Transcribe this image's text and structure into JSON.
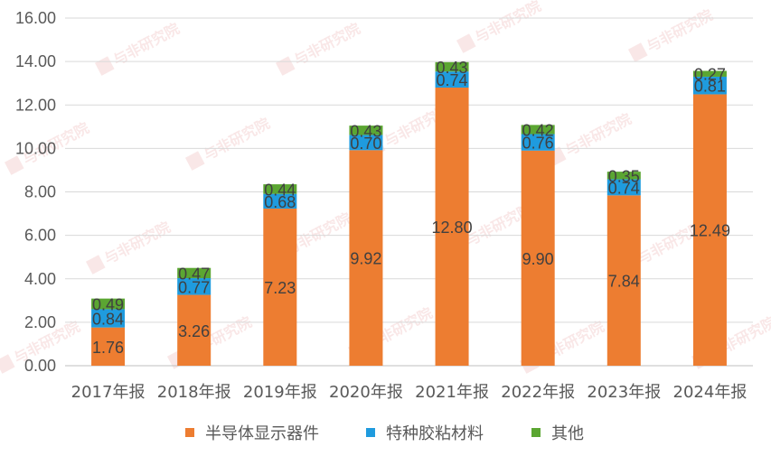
{
  "chart_data": {
    "type": "bar",
    "stacked": true,
    "categories": [
      "2017年报",
      "2018年报",
      "2019年报",
      "2020年报",
      "2021年报",
      "2022年报",
      "2023年报",
      "2024年报"
    ],
    "series": [
      {
        "name": "半导体显示器件",
        "color": "#ED7D31",
        "values": [
          1.76,
          3.26,
          7.23,
          9.92,
          12.8,
          9.9,
          7.84,
          12.49
        ]
      },
      {
        "name": "特种胶粘材料",
        "color": "#1F9BDE",
        "values": [
          0.84,
          0.77,
          0.68,
          0.7,
          0.74,
          0.76,
          0.74,
          0.81
        ]
      },
      {
        "name": "其他",
        "color": "#5BA632",
        "values": [
          0.49,
          0.47,
          0.44,
          0.43,
          0.43,
          0.42,
          0.35,
          0.27
        ]
      }
    ],
    "ylim": [
      0,
      16
    ],
    "yticks": [
      "0.00",
      "2.00",
      "4.00",
      "6.00",
      "8.00",
      "10.00",
      "12.00",
      "14.00",
      "16.00"
    ],
    "grid": true,
    "legend_position": "bottom",
    "title": "",
    "xlabel": "",
    "ylabel": ""
  },
  "watermark": "与非研究院"
}
